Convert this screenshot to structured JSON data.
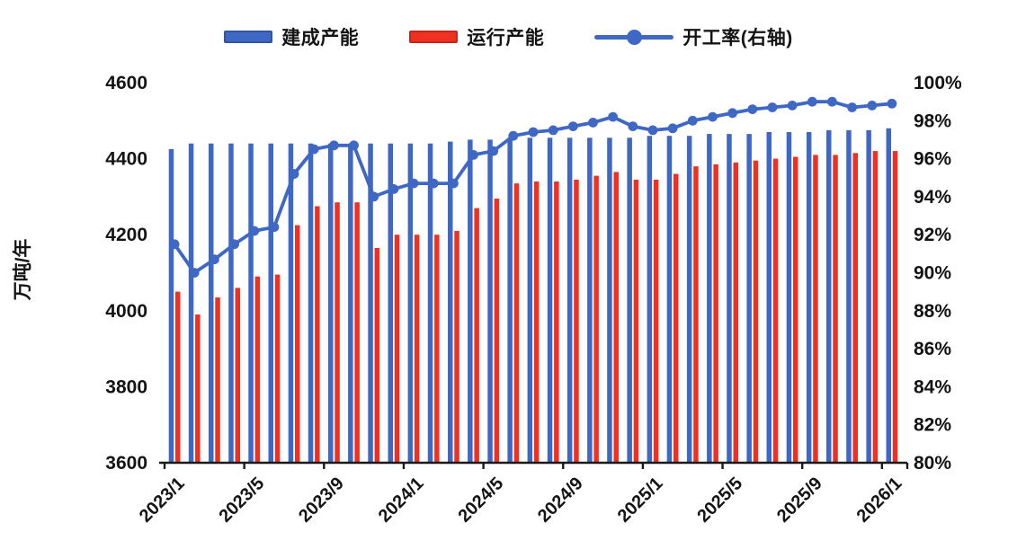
{
  "chart_data": {
    "type": "bar+line combo",
    "title": "",
    "legend_position": "top",
    "grid": false,
    "background": "#ffffff",
    "text_color": "#141414",
    "left_axis": {
      "label": "万吨/年",
      "min": 3600,
      "max": 4600,
      "tick_step": 200,
      "ticks": [
        "3600",
        "3800",
        "4000",
        "4200",
        "4400",
        "4600"
      ]
    },
    "right_axis": {
      "label": "",
      "min": 80,
      "max": 100,
      "tick_step": 2,
      "ticks": [
        "80%",
        "82%",
        "84%",
        "86%",
        "88%",
        "90%",
        "92%",
        "94%",
        "96%",
        "98%",
        "100%"
      ]
    },
    "x": [
      "2023/1",
      "2023/2",
      "2023/3",
      "2023/4",
      "2023/5",
      "2023/6",
      "2023/7",
      "2023/8",
      "2023/9",
      "2023/10",
      "2023/11",
      "2023/12",
      "2024/1",
      "2024/2",
      "2024/3",
      "2024/4",
      "2024/5",
      "2024/6",
      "2024/7",
      "2024/8",
      "2024/9",
      "2024/10",
      "2024/11",
      "2024/12",
      "2025/1",
      "2025/2",
      "2025/3",
      "2025/4",
      "2025/5",
      "2025/6",
      "2025/7",
      "2025/8",
      "2025/9",
      "2025/10",
      "2025/11",
      "2025/12",
      "2026/1"
    ],
    "x_tick_labels": [
      "2023/1",
      "2023/5",
      "2023/9",
      "2024/1",
      "2024/5",
      "2024/9",
      "2025/1",
      "2025/5",
      "2025/9",
      "2026/1"
    ],
    "x_tick_every": 4,
    "series": [
      {
        "name": "建成产能",
        "type": "bar",
        "axis": "left",
        "color": "#3E68C4",
        "values": [
          4425,
          4440,
          4440,
          4440,
          4440,
          4440,
          4440,
          4440,
          4440,
          4440,
          4440,
          4440,
          4440,
          4440,
          4445,
          4450,
          4450,
          4455,
          4455,
          4455,
          4455,
          4455,
          4455,
          4455,
          4460,
          4460,
          4460,
          4465,
          4465,
          4465,
          4470,
          4470,
          4470,
          4475,
          4475,
          4475,
          4480
        ]
      },
      {
        "name": "运行产能",
        "type": "bar",
        "axis": "left",
        "color": "#F03020",
        "values": [
          4050,
          3990,
          4035,
          4060,
          4090,
          4095,
          4225,
          4275,
          4285,
          4285,
          4165,
          4200,
          4200,
          4200,
          4210,
          4270,
          4295,
          4335,
          4340,
          4340,
          4345,
          4355,
          4365,
          4345,
          4345,
          4360,
          4380,
          4385,
          4390,
          4395,
          4400,
          4405,
          4410,
          4410,
          4415,
          4420,
          4420
        ]
      },
      {
        "name": "开工率(右轴)",
        "type": "line",
        "axis": "right",
        "color": "#3E68C4",
        "values": [
          91.5,
          90.0,
          90.7,
          91.5,
          92.2,
          92.4,
          95.2,
          96.5,
          96.7,
          96.7,
          94.0,
          94.4,
          94.7,
          94.7,
          94.7,
          96.2,
          96.4,
          97.2,
          97.4,
          97.5,
          97.7,
          97.9,
          98.2,
          97.7,
          97.5,
          97.6,
          98.0,
          98.2,
          98.4,
          98.6,
          98.7,
          98.8,
          99.0,
          99.0,
          98.7,
          98.8,
          98.9
        ]
      }
    ]
  }
}
